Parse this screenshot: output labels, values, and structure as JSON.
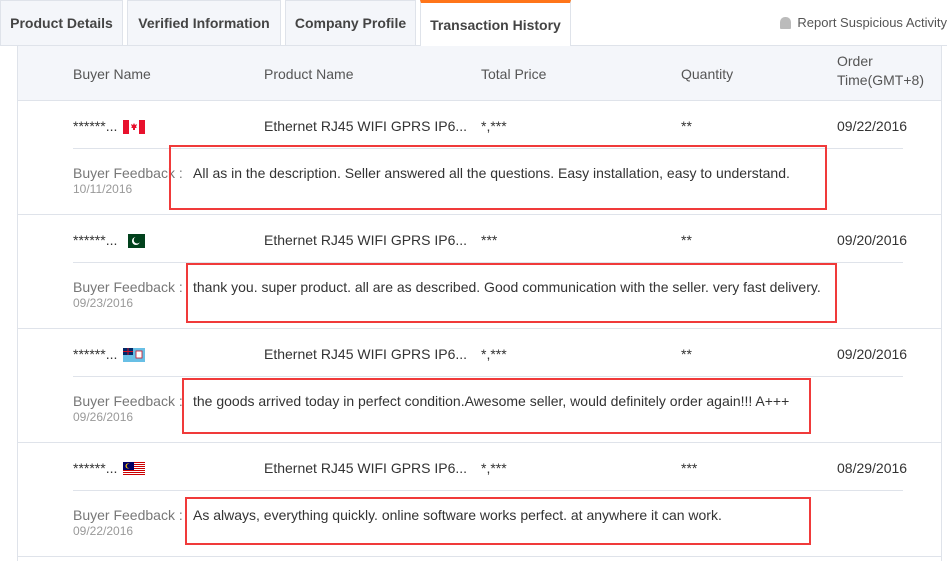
{
  "tabs": [
    {
      "label": "Product Details"
    },
    {
      "label": "Verified Information"
    },
    {
      "label": "Company Profile"
    },
    {
      "label": "Transaction History",
      "active": true
    }
  ],
  "report_label": "Report Suspicious Activity",
  "accent": "#ff7519",
  "headers": {
    "buyer": "Buyer Name",
    "product": "Product Name",
    "price": "Total Price",
    "qty": "Quantity",
    "order": "Order Time(GMT+8)"
  },
  "feedback_label": "Buyer Feedback :",
  "rows": [
    {
      "buyer": "******...",
      "country": "Canada",
      "product": "Ethernet RJ45 WIFI GPRS IP6...",
      "price": "*,***",
      "qty": "**",
      "date": "09/22/2016",
      "feedback_date": "10/11/2016",
      "feedback": "All as in the description. Seller answered all the questions. Easy installation, easy to understand."
    },
    {
      "buyer": "******...",
      "country": "Pakistan",
      "product": "Ethernet RJ45 WIFI GPRS IP6...",
      "price": "***",
      "qty": "**",
      "date": "09/20/2016",
      "feedback_date": "09/23/2016",
      "feedback": "thank you. super product. all are as described. Good communication with the seller. very fast delivery."
    },
    {
      "buyer": "******...",
      "country": "Fiji",
      "product": "Ethernet RJ45 WIFI GPRS IP6...",
      "price": "*,***",
      "qty": "**",
      "date": "09/20/2016",
      "feedback_date": "09/26/2016",
      "feedback": "the goods arrived today in perfect condition.Awesome seller, would definitely order again!!! A+++"
    },
    {
      "buyer": "******...",
      "country": "Malaysia",
      "product": "Ethernet RJ45 WIFI GPRS IP6...",
      "price": "*,***",
      "qty": "***",
      "date": "08/29/2016",
      "feedback_date": "09/22/2016",
      "feedback": "As always, everything quickly. online software works perfect. at anywhere it can work."
    }
  ]
}
